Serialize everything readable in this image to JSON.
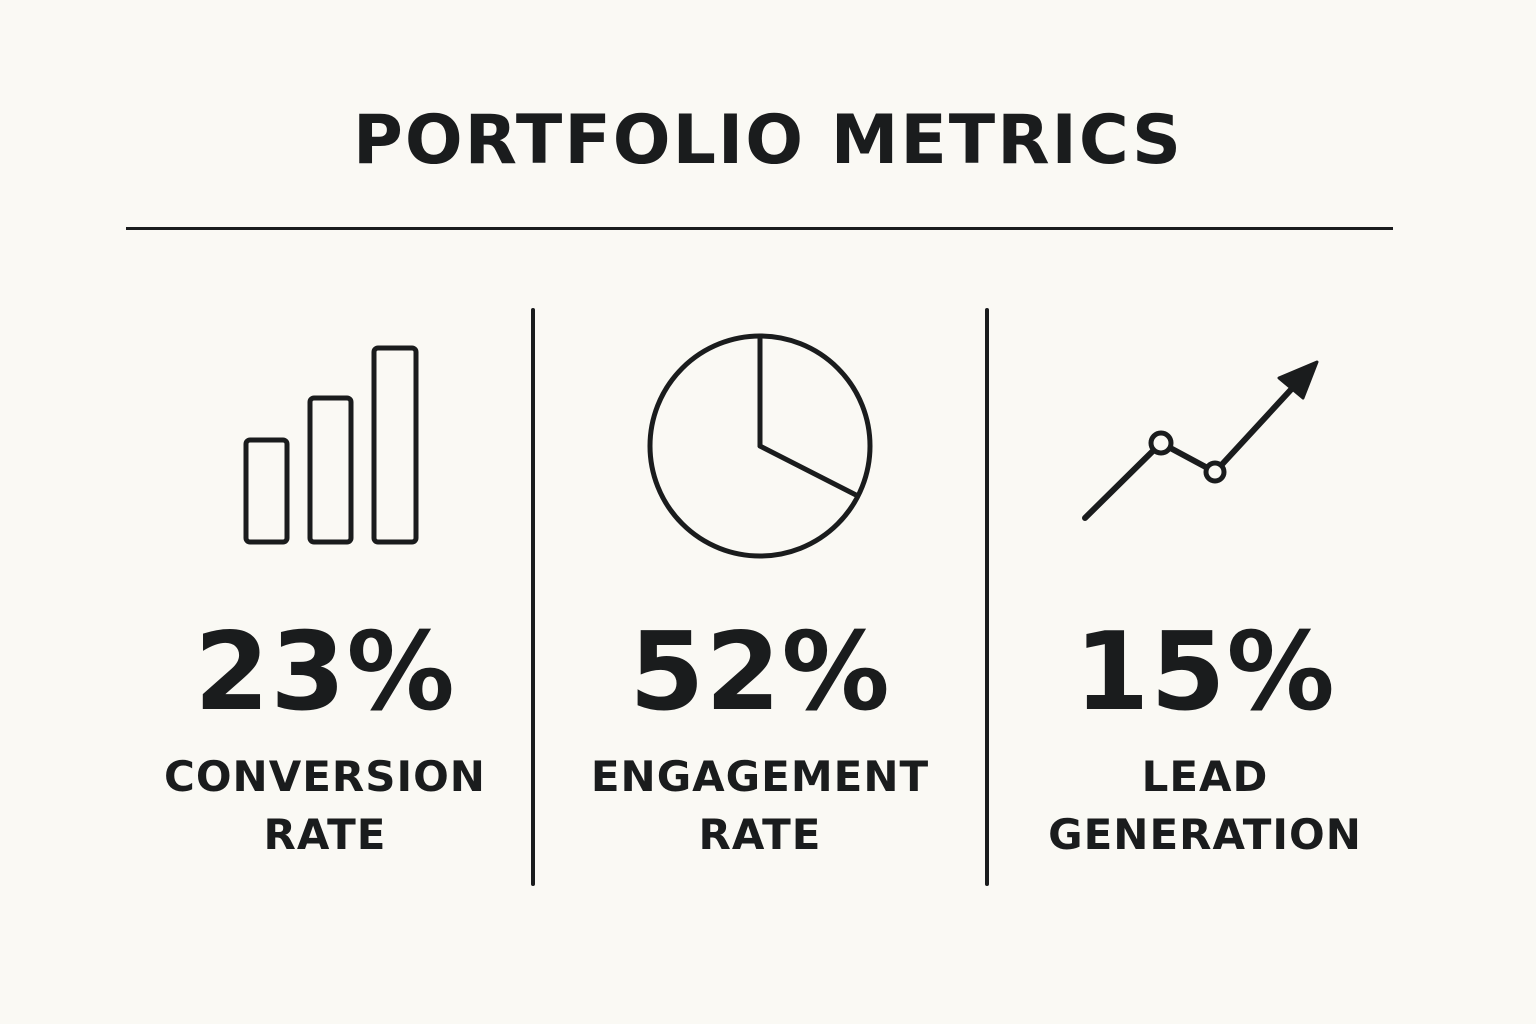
{
  "title": "PORTFOLIO METRICS",
  "metrics": [
    {
      "icon": "bar-chart-icon",
      "value": "23%",
      "label_lines": [
        "CONVERSION",
        "RATE"
      ]
    },
    {
      "icon": "pie-chart-icon",
      "value": "52%",
      "label_lines": [
        "ENGAGEMENT",
        "RATE"
      ]
    },
    {
      "icon": "trend-up-icon",
      "value": "15%",
      "label_lines": [
        "LEAD",
        "GENERATION"
      ]
    }
  ],
  "colors": {
    "background": "#faf9f4",
    "ink": "#1a1c1d"
  }
}
